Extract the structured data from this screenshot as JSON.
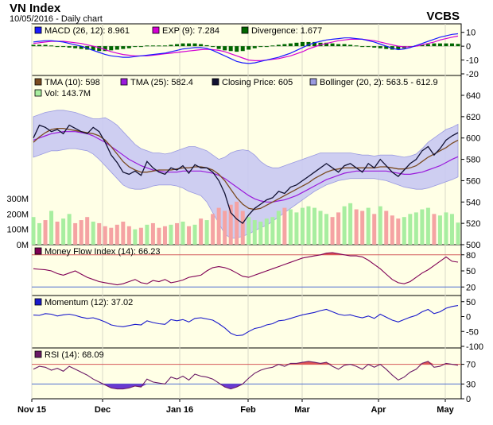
{
  "header": {
    "title": "VN Index",
    "subtitle": "10/05/2016 - Daily chart",
    "brand": "VCBS"
  },
  "colors": {
    "panel_bg": "#ffffe6",
    "price_bg": "#ffffe6",
    "macd": "#1a1aff",
    "exp": "#d400d4",
    "divergence": "#006600",
    "tma10": "#7a4a1f",
    "tma25": "#9a1adb",
    "closing": "#111133",
    "bollinger_fill": "#c9c9f2",
    "bollinger_edge": "#9a9ae0",
    "vol_up": "#a8eea0",
    "vol_down": "#f5a3a3",
    "mfi": "#800055",
    "momentum": "#1a1acc",
    "rsi": "#6a1a66",
    "overbought_fill": "#e05555",
    "oversold_fill": "#6a3ad0",
    "red_ref": "#d45a5a",
    "blue_ref": "#4f6fd0"
  },
  "x_axis_labels": [
    "Nov 15",
    "Dec",
    "Jan 16",
    "Feb",
    "Mar",
    "Apr",
    "May"
  ],
  "chart_data": [
    {
      "type": "line",
      "panel": "macd",
      "legend": [
        {
          "label": "MACD (26, 12): 8.961",
          "color": "#1a1aff"
        },
        {
          "label": "EXP (9): 7.284",
          "color": "#d400d4"
        },
        {
          "label": "Divergence: 1.677",
          "color": "#006600"
        }
      ],
      "yticks": [
        "10",
        "0",
        "-10",
        "-20"
      ],
      "ylim": [
        -20,
        15
      ],
      "series": [
        {
          "name": "MACD",
          "values": [
            3,
            3.5,
            4,
            4,
            3.5,
            3,
            2,
            1,
            0,
            -1.5,
            -3,
            -4.5,
            -6,
            -7,
            -7.5,
            -8,
            -8,
            -7.5,
            -7,
            -6.5,
            -6,
            -5.5,
            -5,
            -4,
            -3,
            -2,
            -1.5,
            -1,
            -1,
            -1.5,
            -3,
            -5,
            -7,
            -9,
            -11,
            -12,
            -12.5,
            -12,
            -11,
            -10,
            -9,
            -8,
            -6.5,
            -5,
            -3,
            -1,
            1,
            2.5,
            3.5,
            4.5,
            5,
            5.5,
            6,
            6,
            5.5,
            5,
            4,
            3,
            1.5,
            0,
            -1.5,
            -2.5,
            -2,
            -1,
            0.5,
            2,
            3.5,
            5,
            6.5,
            7.5,
            8.5,
            8.961
          ]
        },
        {
          "name": "EXP",
          "values": [
            2,
            2.5,
            3,
            3.5,
            3.5,
            3.5,
            3,
            2.5,
            2,
            1,
            0,
            -1,
            -2.5,
            -4,
            -5,
            -6,
            -6.5,
            -7,
            -7,
            -7,
            -6.5,
            -6,
            -5.5,
            -5,
            -4.5,
            -4,
            -3.5,
            -3,
            -2.5,
            -2.2,
            -2.5,
            -3,
            -4,
            -5.5,
            -7,
            -8.5,
            -10,
            -10.5,
            -10.5,
            -10,
            -9.5,
            -9,
            -8,
            -7,
            -5.5,
            -4,
            -2,
            -0.5,
            1,
            2,
            3,
            4,
            4.5,
            5,
            5,
            5,
            4.5,
            4,
            3,
            2,
            1,
            0,
            -0.5,
            -0.5,
            0,
            1,
            2,
            3,
            4.5,
            5.5,
            6.5,
            7.284
          ]
        }
      ]
    },
    {
      "type": "line",
      "panel": "price",
      "legend": [
        {
          "label": "TMA (10): 598",
          "color": "#7a4a1f"
        },
        {
          "label": "TMA (25): 582.4",
          "color": "#9a1adb"
        },
        {
          "label": "Closing Price: 605",
          "color": "#111133"
        },
        {
          "label": "Bollinger (20, 2): 563.5 - 612.9",
          "color": "#9a9ae0"
        },
        {
          "label": "Vol: 143.7M",
          "color": "#a8eea0"
        }
      ],
      "yticks": [
        "640",
        "620",
        "600",
        "580",
        "560",
        "540",
        "520",
        "500"
      ],
      "ylim": [
        500,
        645
      ],
      "volume_ticks": [
        "300M",
        "200M",
        "100M",
        "0M"
      ],
      "volume_ylim": [
        0,
        500
      ],
      "series": [
        {
          "name": "Closing Price",
          "values": [
            600,
            612,
            610,
            606,
            608,
            604,
            612,
            609,
            606,
            604,
            610,
            606,
            596,
            584,
            577,
            568,
            566,
            569,
            565,
            578,
            572,
            568,
            566,
            572,
            570,
            574,
            567,
            575,
            572,
            572,
            568,
            560,
            548,
            530,
            524,
            520,
            528,
            534,
            538,
            542,
            544,
            550,
            548,
            554,
            556,
            560,
            564,
            568,
            572,
            576,
            572,
            568,
            574,
            576,
            572,
            568,
            576,
            572,
            580,
            574,
            568,
            564,
            570,
            576,
            580,
            588,
            592,
            584,
            590,
            598,
            602,
            605
          ]
        },
        {
          "name": "TMA (10)",
          "values": [
            596,
            601,
            605,
            608,
            609,
            609,
            608,
            607,
            606,
            605,
            604,
            602,
            598,
            592,
            585,
            578,
            573,
            570,
            568,
            568,
            569,
            570,
            570,
            570,
            571,
            572,
            572,
            573,
            573,
            572,
            570,
            566,
            560,
            552,
            544,
            538,
            534,
            533,
            534,
            537,
            540,
            543,
            546,
            549,
            552,
            555,
            558,
            562,
            565,
            568,
            570,
            571,
            572,
            572,
            572,
            572,
            572,
            572,
            573,
            573,
            572,
            571,
            571,
            572,
            574,
            578,
            582,
            585,
            588,
            591,
            595,
            598
          ]
        },
        {
          "name": "TMA (25)",
          "values": [
            598,
            600,
            602,
            604,
            605,
            606,
            606,
            606,
            605,
            604,
            602,
            599,
            596,
            592,
            588,
            584,
            580,
            577,
            574,
            572,
            570,
            569,
            568,
            568,
            568,
            569,
            569,
            569,
            569,
            568,
            567,
            565,
            562,
            558,
            554,
            550,
            546,
            543,
            541,
            540,
            540,
            541,
            542,
            544,
            546,
            549,
            552,
            555,
            558,
            561,
            563,
            565,
            567,
            568,
            569,
            569,
            569,
            569,
            569,
            569,
            568,
            567,
            566,
            566,
            567,
            568,
            570,
            572,
            574,
            577,
            580,
            582.4
          ]
        },
        {
          "name": "Bollinger Upper",
          "values": [
            620,
            622,
            624,
            625,
            626,
            626,
            625,
            624,
            622,
            620,
            618,
            618,
            619,
            616,
            612,
            606,
            600,
            594,
            590,
            588,
            586,
            586,
            585,
            586,
            588,
            590,
            592,
            592,
            590,
            588,
            584,
            580,
            582,
            586,
            588,
            589,
            588,
            584,
            578,
            574,
            572,
            572,
            574,
            576,
            578,
            580,
            582,
            584,
            586,
            586,
            586,
            586,
            586,
            586,
            585,
            584,
            584,
            583,
            584,
            584,
            584,
            583,
            582,
            583,
            585,
            590,
            596,
            600,
            604,
            608,
            610,
            612.9
          ]
        },
        {
          "name": "Bollinger Lower",
          "values": [
            582,
            584,
            586,
            588,
            588,
            589,
            590,
            590,
            589,
            588,
            585,
            580,
            574,
            568,
            562,
            556,
            553,
            552,
            552,
            553,
            555,
            556,
            556,
            556,
            555,
            553,
            550,
            548,
            546,
            540,
            530,
            520,
            510,
            506,
            506,
            508,
            510,
            513,
            516,
            518,
            522,
            526,
            530,
            534,
            538,
            542,
            546,
            550,
            553,
            556,
            558,
            560,
            561,
            562,
            562,
            562,
            562,
            562,
            561,
            560,
            558,
            556,
            554,
            553,
            552,
            552,
            553,
            555,
            557,
            559,
            561,
            563.5
          ]
        }
      ],
      "volume": [
        180,
        140,
        160,
        220,
        150,
        170,
        200,
        140,
        160,
        180,
        150,
        140,
        120,
        110,
        130,
        150,
        120,
        100,
        110,
        130,
        140,
        110,
        120,
        130,
        140,
        150,
        120,
        130,
        170,
        160,
        200,
        240,
        220,
        260,
        280,
        220,
        180,
        160,
        150,
        170,
        180,
        220,
        240,
        230,
        210,
        240,
        250,
        240,
        220,
        200,
        180,
        210,
        250,
        270,
        230,
        220,
        240,
        200,
        250,
        220,
        190,
        170,
        180,
        200,
        210,
        230,
        240,
        200,
        190,
        210,
        200,
        143.7
      ],
      "volume_up": [
        true,
        true,
        false,
        true,
        false,
        true,
        true,
        false,
        false,
        false,
        true,
        false,
        false,
        false,
        false,
        false,
        false,
        true,
        false,
        true,
        false,
        false,
        false,
        true,
        false,
        true,
        false,
        true,
        false,
        true,
        false,
        false,
        false,
        false,
        false,
        false,
        true,
        true,
        true,
        true,
        true,
        true,
        false,
        true,
        true,
        true,
        true,
        true,
        true,
        true,
        false,
        false,
        true,
        true,
        false,
        false,
        true,
        false,
        true,
        false,
        false,
        false,
        true,
        true,
        true,
        true,
        true,
        false,
        true,
        true,
        true,
        true
      ]
    },
    {
      "type": "line",
      "panel": "mfi",
      "legend": [
        {
          "label": "Money Flow Index (14): 66.23",
          "color": "#800055"
        }
      ],
      "yticks": [
        "80",
        "50",
        "20"
      ],
      "ylim": [
        10,
        90
      ],
      "reference_lines": [
        80,
        20
      ],
      "series": [
        {
          "name": "MFI",
          "values": [
            54,
            53,
            52,
            50,
            45,
            42,
            46,
            50,
            44,
            38,
            34,
            30,
            28,
            26,
            24,
            26,
            30,
            34,
            28,
            26,
            32,
            30,
            34,
            28,
            30,
            33,
            38,
            40,
            42,
            50,
            56,
            58,
            56,
            52,
            46,
            40,
            38,
            42,
            46,
            50,
            54,
            58,
            62,
            66,
            70,
            74,
            76,
            78,
            80,
            83,
            84,
            82,
            80,
            78,
            78,
            76,
            70,
            62,
            54,
            44,
            34,
            28,
            26,
            30,
            38,
            46,
            52,
            60,
            68,
            76,
            68,
            66.23
          ]
        }
      ]
    },
    {
      "type": "line",
      "panel": "momentum",
      "legend": [
        {
          "label": "Momentum (12): 37.02",
          "color": "#1a1acc"
        }
      ],
      "yticks": [
        "50",
        "0",
        "-50",
        "-100"
      ],
      "ylim": [
        -100,
        60
      ],
      "series": [
        {
          "name": "Momentum",
          "values": [
            5,
            4,
            10,
            8,
            2,
            6,
            8,
            4,
            -2,
            -6,
            -4,
            -10,
            -18,
            -28,
            -32,
            -34,
            -30,
            -26,
            -28,
            -14,
            -20,
            -24,
            -26,
            -10,
            -14,
            -10,
            -18,
            -6,
            -4,
            -8,
            -12,
            -24,
            -38,
            -56,
            -64,
            -62,
            -50,
            -40,
            -36,
            -28,
            -24,
            -14,
            -12,
            -6,
            0,
            6,
            10,
            14,
            20,
            24,
            16,
            8,
            4,
            6,
            0,
            -4,
            2,
            -6,
            8,
            -2,
            -12,
            -18,
            -10,
            -2,
            4,
            16,
            24,
            10,
            16,
            28,
            34,
            37.02
          ]
        }
      ]
    },
    {
      "type": "line",
      "panel": "rsi",
      "legend": [
        {
          "label": "RSI (14): 68.09",
          "color": "#6a1a66"
        }
      ],
      "yticks": [
        "70",
        "30",
        "0"
      ],
      "ylim": [
        0,
        100
      ],
      "reference_lines": [
        70,
        30
      ],
      "series": [
        {
          "name": "RSI",
          "values": [
            60,
            66,
            64,
            58,
            62,
            56,
            66,
            60,
            54,
            48,
            40,
            34,
            28,
            22,
            20,
            20,
            22,
            26,
            24,
            40,
            34,
            32,
            30,
            44,
            40,
            46,
            38,
            50,
            46,
            44,
            40,
            32,
            24,
            20,
            24,
            30,
            42,
            52,
            58,
            62,
            64,
            70,
            66,
            72,
            72,
            74,
            76,
            74,
            72,
            74,
            66,
            60,
            68,
            70,
            66,
            60,
            70,
            64,
            70,
            60,
            48,
            38,
            44,
            54,
            60,
            72,
            76,
            64,
            66,
            72,
            70,
            68.09
          ]
        }
      ]
    }
  ]
}
